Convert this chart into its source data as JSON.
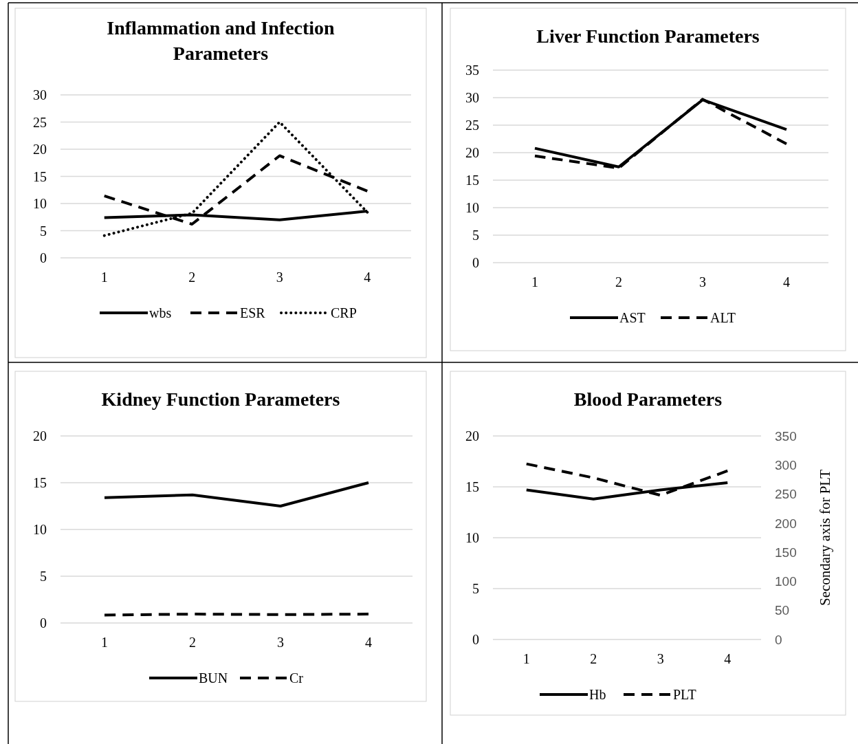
{
  "chart_data": [
    {
      "type": "line",
      "title": "Inflammation and Infection Parameters",
      "categories": [
        "1",
        "2",
        "3",
        "4"
      ],
      "ylim": [
        0,
        30
      ],
      "yticks": [
        0,
        5,
        10,
        15,
        20,
        25,
        30
      ],
      "grid": "y",
      "legend": "bottom",
      "series": [
        {
          "name": "wbs",
          "color": "#000000",
          "line_style": "solid",
          "values": [
            7.4,
            7.9,
            7.0,
            8.6
          ]
        },
        {
          "name": "ESR",
          "color": "#000000",
          "line_style": "dashed",
          "values": [
            11.4,
            6.2,
            18.8,
            12.3
          ]
        },
        {
          "name": "CRP",
          "color": "#000000",
          "line_style": "dotted",
          "values": [
            4.1,
            8.2,
            25.0,
            8.4
          ]
        }
      ]
    },
    {
      "type": "line",
      "title": "Liver Function Parameters",
      "categories": [
        "1",
        "2",
        "3",
        "4"
      ],
      "ylim": [
        0,
        35
      ],
      "yticks": [
        0,
        5,
        10,
        15,
        20,
        25,
        30,
        35
      ],
      "grid": "y",
      "legend": "bottom",
      "series": [
        {
          "name": "AST",
          "color": "#000000",
          "line_style": "solid",
          "values": [
            20.8,
            17.4,
            29.6,
            24.2
          ]
        },
        {
          "name": "ALT",
          "color": "#000000",
          "line_style": "dashed",
          "values": [
            19.4,
            17.2,
            29.7,
            21.6
          ]
        }
      ]
    },
    {
      "type": "line",
      "title": "Kidney Function Parameters",
      "categories": [
        "1",
        "2",
        "3",
        "4"
      ],
      "ylim": [
        0,
        20
      ],
      "yticks": [
        0,
        5,
        10,
        15,
        20
      ],
      "grid": "y",
      "legend": "bottom",
      "series": [
        {
          "name": "BUN",
          "color": "#000000",
          "line_style": "solid",
          "values": [
            13.4,
            13.7,
            12.5,
            15.0
          ]
        },
        {
          "name": "Cr",
          "color": "#000000",
          "line_style": "dashed",
          "values": [
            0.85,
            0.95,
            0.9,
            0.95
          ]
        }
      ]
    },
    {
      "type": "line",
      "title": "Blood Parameters",
      "categories": [
        "1",
        "2",
        "3",
        "4"
      ],
      "ylim": [
        0,
        20
      ],
      "yticks": [
        0,
        5,
        10,
        15,
        20
      ],
      "y2lim": [
        0,
        350
      ],
      "y2ticks": [
        0,
        50,
        100,
        150,
        200,
        250,
        300,
        350
      ],
      "y2label": "Secondary axis for PLT",
      "grid": "y",
      "legend": "bottom",
      "series": [
        {
          "name": "Hb",
          "color": "#000000",
          "line_style": "solid",
          "values": [
            14.7,
            13.8,
            14.7,
            15.4
          ]
        },
        {
          "name": "PLT",
          "color": "#000000",
          "line_style": "dashed",
          "axis": "y2",
          "values": [
            302,
            278,
            248,
            290
          ]
        }
      ]
    }
  ]
}
